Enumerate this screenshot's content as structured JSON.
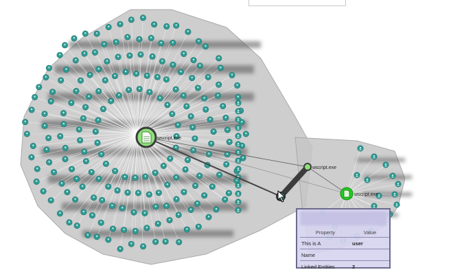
{
  "graph": {
    "main_node_label": "wscript.exe",
    "secondary_node_label": "wscript.exe",
    "green_node_label": "wscript.exe"
  },
  "tooltip": {
    "col_property": "Property",
    "col_value": "Value",
    "rows": [
      {
        "property": "This is A",
        "value": "user"
      },
      {
        "property": "Name",
        "value": ""
      },
      {
        "property": "Linked Entities",
        "value": "2"
      }
    ]
  },
  "colors": {
    "hull_fill": "#c6c6c6",
    "user_node": "#2f9b94",
    "file_node": "#8fe07a",
    "selected_edge": "#3c3c3c",
    "green_node": "#22cc22"
  },
  "icons": {
    "user_node": "user-icon",
    "file_node": "document-icon",
    "cursor": "mouse-pointer-icon"
  }
}
